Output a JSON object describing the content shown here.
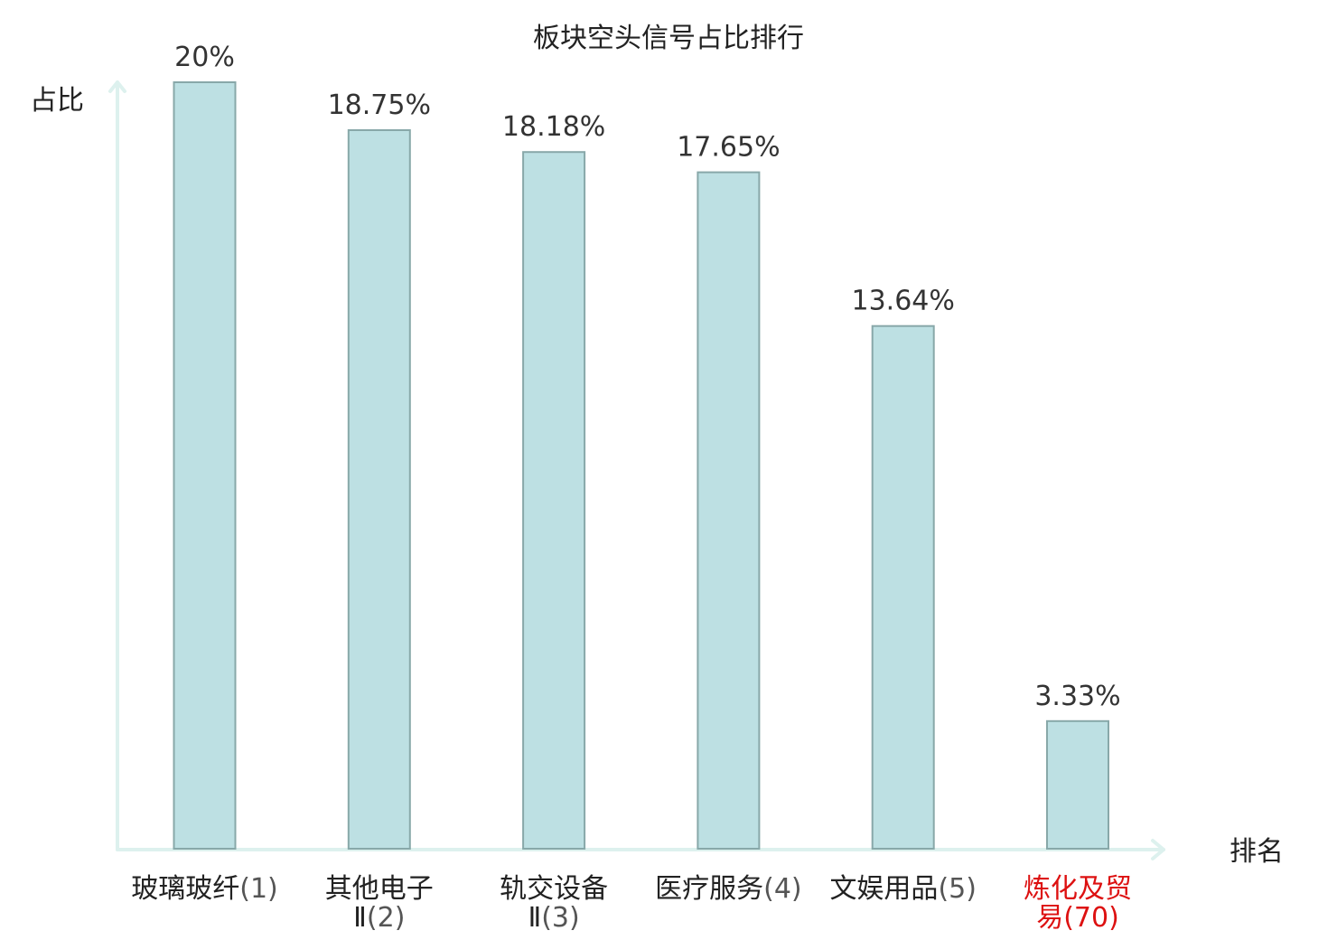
{
  "chart_data": {
    "type": "bar",
    "title": "板块空头信号占比排行",
    "ylabel": "占比",
    "xlabel": "排名",
    "ylim": [
      0,
      20
    ],
    "grid": false,
    "legend": "none",
    "categories": [
      {
        "name_lines": [
          "玻璃玻纤"
        ],
        "rank": "(1)",
        "highlight": false
      },
      {
        "name_lines": [
          "其他电子",
          "Ⅱ"
        ],
        "rank": "(2)",
        "highlight": false
      },
      {
        "name_lines": [
          "轨交设备",
          "Ⅱ"
        ],
        "rank": "(3)",
        "highlight": false
      },
      {
        "name_lines": [
          "医疗服务"
        ],
        "rank": "(4)",
        "highlight": false
      },
      {
        "name_lines": [
          "文娱用品"
        ],
        "rank": "(5)",
        "highlight": false
      },
      {
        "name_lines": [
          "炼化及贸",
          "易"
        ],
        "rank": "(70)",
        "highlight": true
      }
    ],
    "values": [
      20,
      18.75,
      18.18,
      17.65,
      13.64,
      3.33
    ],
    "value_labels": [
      "20%",
      "18.75%",
      "18.18%",
      "17.65%",
      "13.64%",
      "3.33%"
    ]
  },
  "colors": {
    "bar_fill": "#bde0e3",
    "bar_stroke": "#88a8a9",
    "axis": "#ddf1ee",
    "highlight_text": "#dd1111"
  }
}
